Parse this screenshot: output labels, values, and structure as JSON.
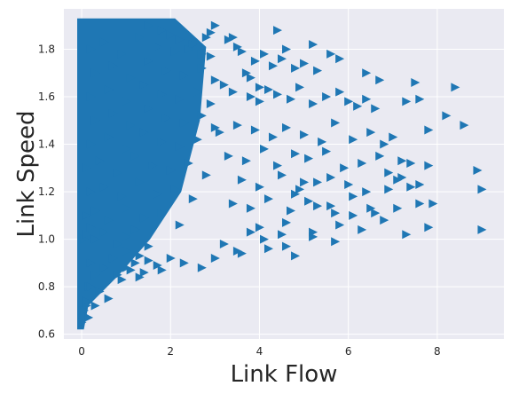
{
  "chart_data": {
    "type": "scatter",
    "title": "",
    "xlabel": "Link Flow",
    "ylabel": "Link Speed",
    "xlim": [
      -0.4,
      9.5
    ],
    "ylim": [
      0.58,
      1.97
    ],
    "x_ticks": [
      0,
      2,
      4,
      6,
      8
    ],
    "y_ticks": [
      0.6,
      0.8,
      1.0,
      1.2,
      1.4,
      1.6,
      1.8
    ],
    "x_tick_labels": [
      "0",
      "2",
      "4",
      "6",
      "8"
    ],
    "y_tick_labels": [
      "0.6",
      "0.8",
      "1.0",
      "1.2",
      "1.4",
      "1.6",
      "1.8"
    ],
    "grid": true,
    "background_color": "#eaeaf2",
    "marker": "triangle-right",
    "marker_color": "#1f77b4",
    "series": [
      {
        "x": [
          0.0,
          0.0,
          0.05,
          0.1,
          0.15,
          0.2,
          0.3,
          0.5,
          0.7,
          1.0,
          1.3,
          0.05,
          0.1,
          0.2,
          0.3,
          0.5,
          0.8,
          1.0,
          1.2,
          1.5,
          0.1,
          0.3,
          0.6,
          1.0,
          1.4,
          1.8,
          2.2,
          0.2,
          0.5,
          0.9,
          1.3,
          1.7,
          2.1,
          2.5,
          0.1,
          0.4,
          0.8,
          1.2,
          1.6,
          2.0,
          2.4,
          2.8,
          0.2,
          0.6,
          1.0,
          1.4,
          1.8,
          2.2,
          2.6,
          0.3,
          0.7,
          1.1,
          1.5,
          1.9,
          2.3,
          2.7,
          3.0,
          0.2,
          0.6,
          1.0,
          1.4,
          1.8,
          2.2,
          2.6,
          2.9,
          0.3,
          0.7,
          1.1,
          1.5,
          1.9,
          2.3,
          2.7,
          3.0,
          0.2,
          0.5,
          0.9,
          1.3,
          1.7,
          2.1,
          2.5,
          2.9,
          1.5,
          1.8,
          2.0,
          2.2,
          2.4,
          2.7,
          2.9,
          3.3,
          3.5,
          3.0,
          2.8,
          3.6,
          3.7,
          3.9,
          4.1,
          4.3,
          4.5,
          4.8,
          5.0,
          5.3,
          3.2,
          3.4,
          3.8,
          4.0,
          4.2,
          4.4,
          4.7,
          4.9,
          5.2,
          5.5,
          5.8,
          6.0,
          6.2,
          6.4,
          6.6,
          3.1,
          3.5,
          3.9,
          4.3,
          4.6,
          5.0,
          5.4,
          5.7,
          6.1,
          6.5,
          6.8,
          7.0,
          3.3,
          3.7,
          4.1,
          4.4,
          4.8,
          5.1,
          5.5,
          5.9,
          6.3,
          6.7,
          7.2,
          3.6,
          4.0,
          4.5,
          4.9,
          5.3,
          5.6,
          6.0,
          6.4,
          6.9,
          7.4,
          3.4,
          3.8,
          4.2,
          4.7,
          5.1,
          5.6,
          6.1,
          6.6,
          7.1,
          7.6,
          4.0,
          4.6,
          5.2,
          5.8,
          6.3,
          6.8,
          7.3,
          7.8,
          3.2,
          3.5,
          4.1,
          4.6,
          5.2,
          5.7,
          3.0,
          3.6,
          4.2,
          4.8,
          3.8,
          4.5,
          7.5,
          8.4,
          8.6,
          7.8,
          8.2,
          7.3,
          7.6,
          7.8,
          8.9,
          9.0,
          9.0,
          7.1,
          7.4,
          6.4,
          6.7,
          5.2,
          5.6,
          5.8,
          4.4,
          4.6,
          3.4,
          4.0,
          3.8,
          5.3,
          5.7,
          5.0,
          4.8,
          6.1,
          6.5,
          6.9,
          7.2,
          7.6,
          7.9,
          1.0,
          1.2,
          1.5,
          1.7,
          2.0,
          0.8,
          1.1,
          1.4,
          0.9,
          1.3,
          1.8,
          2.3,
          2.7,
          0.6,
          0.4,
          0.2,
          0.1,
          0.05,
          0.3,
          0.15
        ],
        "y": [
          0.65,
          0.7,
          0.68,
          0.72,
          0.8,
          0.9,
          0.85,
          0.88,
          0.92,
          0.95,
          0.93,
          1.0,
          1.02,
          1.05,
          1.0,
          1.03,
          0.98,
          1.01,
          1.04,
          0.97,
          1.1,
          1.12,
          1.08,
          1.13,
          1.09,
          1.11,
          1.06,
          1.2,
          1.22,
          1.18,
          1.24,
          1.19,
          1.21,
          1.17,
          1.3,
          1.33,
          1.28,
          1.35,
          1.31,
          1.29,
          1.32,
          1.27,
          1.4,
          1.43,
          1.38,
          1.45,
          1.41,
          1.39,
          1.42,
          1.5,
          1.53,
          1.48,
          1.55,
          1.51,
          1.49,
          1.52,
          1.47,
          1.6,
          1.63,
          1.58,
          1.65,
          1.61,
          1.59,
          1.62,
          1.57,
          1.7,
          1.73,
          1.68,
          1.75,
          1.71,
          1.69,
          1.72,
          1.67,
          1.8,
          1.83,
          1.78,
          1.85,
          1.81,
          1.79,
          1.82,
          1.77,
          1.9,
          1.88,
          1.86,
          1.84,
          1.8,
          1.78,
          1.87,
          1.84,
          1.81,
          1.9,
          1.85,
          1.79,
          1.7,
          1.75,
          1.78,
          1.73,
          1.76,
          1.72,
          1.74,
          1.71,
          1.65,
          1.62,
          1.6,
          1.58,
          1.63,
          1.61,
          1.59,
          1.64,
          1.57,
          1.6,
          1.62,
          1.58,
          1.56,
          1.59,
          1.55,
          1.45,
          1.48,
          1.46,
          1.43,
          1.47,
          1.44,
          1.41,
          1.49,
          1.42,
          1.45,
          1.4,
          1.43,
          1.35,
          1.33,
          1.38,
          1.31,
          1.36,
          1.34,
          1.37,
          1.3,
          1.32,
          1.35,
          1.33,
          1.25,
          1.22,
          1.27,
          1.21,
          1.24,
          1.26,
          1.23,
          1.2,
          1.28,
          1.22,
          1.15,
          1.13,
          1.17,
          1.12,
          1.16,
          1.14,
          1.18,
          1.11,
          1.13,
          1.15,
          1.05,
          1.07,
          1.03,
          1.06,
          1.04,
          1.08,
          1.02,
          1.05,
          0.98,
          0.95,
          1.0,
          0.97,
          1.01,
          0.99,
          0.92,
          0.94,
          0.96,
          0.93,
          1.03,
          1.02,
          1.66,
          1.64,
          1.48,
          1.46,
          1.52,
          1.58,
          1.59,
          1.31,
          1.29,
          1.21,
          1.04,
          1.25,
          1.32,
          1.7,
          1.67,
          1.82,
          1.78,
          1.76,
          1.88,
          1.8,
          1.85,
          1.64,
          1.68,
          1.14,
          1.11,
          1.24,
          1.19,
          1.1,
          1.13,
          1.21,
          1.26,
          1.23,
          1.15,
          0.88,
          0.9,
          0.91,
          0.89,
          0.92,
          0.85,
          0.87,
          0.86,
          0.83,
          0.84,
          0.87,
          0.9,
          0.88,
          0.75,
          0.78,
          0.8,
          0.74,
          0.7,
          0.72,
          0.67
        ]
      }
    ],
    "dense_region": {
      "x_min": -0.1,
      "x_max": 2.8,
      "y_min": 0.62,
      "y_max": 1.93
    }
  }
}
